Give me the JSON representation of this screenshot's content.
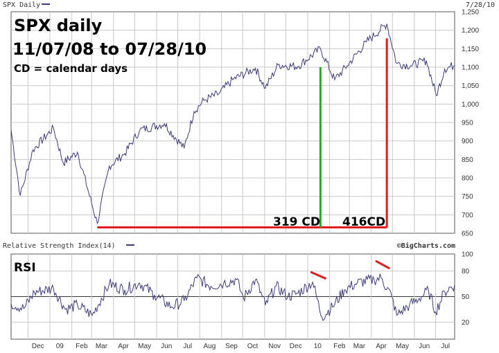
{
  "header": {
    "title": "SPX Daily",
    "date": "7/28/10",
    "rsi_label": "Relative Strength Index(14)",
    "brand": "©BigCharts.com"
  },
  "annotations": {
    "line1": "SPX daily",
    "line2": "11/07/08 to 07/28/10",
    "line3": "CD = calendar days",
    "cd319": "319 CD",
    "cd416": "416CD",
    "rsi": "RSI"
  },
  "colors": {
    "series": "#3a3a7a",
    "grid": "#c8c8c8",
    "green": "#22aa22",
    "red": "#e01b1b"
  },
  "chart_data": [
    {
      "type": "line",
      "name": "SPX daily",
      "x_ticks": [
        "Dec",
        "09",
        "Feb",
        "Mar",
        "Apr",
        "May",
        "Jun",
        "Jul",
        "Aug",
        "Sep",
        "Oct",
        "Nov",
        "Dec",
        "10",
        "Feb",
        "Mar",
        "Apr",
        "May",
        "Jun",
        "Jul"
      ],
      "ylim": [
        650,
        1250
      ],
      "y_ticks": [
        650,
        700,
        750,
        800,
        850,
        900,
        950,
        "1,000",
        "1,050",
        "1,100",
        "1,150",
        "1,200",
        "1,250"
      ],
      "x": [
        "2008-11-07",
        "2008-11-20",
        "2008-12-08",
        "2009-01-06",
        "2009-01-20",
        "2009-02-09",
        "2009-03-09",
        "2009-03-26",
        "2009-04-17",
        "2009-05-08",
        "2009-06-12",
        "2009-07-10",
        "2009-07-24",
        "2009-08-07",
        "2009-08-28",
        "2009-09-18",
        "2009-10-19",
        "2009-11-02",
        "2009-11-20",
        "2009-12-18",
        "2010-01-19",
        "2010-02-08",
        "2010-02-26",
        "2010-03-25",
        "2010-04-23",
        "2010-05-07",
        "2010-05-27",
        "2010-06-18",
        "2010-07-02",
        "2010-07-14",
        "2010-07-28"
      ],
      "y": [
        930,
        752,
        876,
        935,
        840,
        870,
        677,
        832,
        866,
        929,
        947,
        880,
        980,
        1010,
        1028,
        1068,
        1097,
        1043,
        1106,
        1102,
        1150,
        1066,
        1104,
        1168,
        1217,
        1110,
        1104,
        1118,
        1023,
        1095,
        1106
      ],
      "annotations": [
        {
          "type": "span",
          "from": "2009-03-09",
          "to": "2010-04-23",
          "y": 666,
          "color": "red"
        },
        {
          "type": "vline",
          "x": "2010-01-19",
          "y_top": 1100,
          "label": "319 CD",
          "color": "green"
        },
        {
          "type": "vline",
          "x": "2010-04-23",
          "y_top": 1178,
          "label": "416CD",
          "color": "red"
        }
      ]
    },
    {
      "type": "line",
      "name": "RSI",
      "ylim": [
        0,
        100
      ],
      "y_ticks": [
        20,
        50,
        80,
        100
      ],
      "x": [
        "2008-11-07",
        "2008-11-25",
        "2008-12-10",
        "2009-01-06",
        "2009-01-23",
        "2009-02-09",
        "2009-03-02",
        "2009-03-26",
        "2009-04-17",
        "2009-05-08",
        "2009-05-29",
        "2009-06-22",
        "2009-07-10",
        "2009-07-28",
        "2009-08-17",
        "2009-09-04",
        "2009-09-22",
        "2009-10-02",
        "2009-10-19",
        "2009-11-02",
        "2009-11-17",
        "2009-12-04",
        "2009-12-18",
        "2010-01-08",
        "2010-01-21",
        "2010-02-05",
        "2010-02-22",
        "2010-03-12",
        "2010-04-05",
        "2010-04-15",
        "2010-04-30",
        "2010-05-07",
        "2010-05-25",
        "2010-06-08",
        "2010-06-21",
        "2010-07-01",
        "2010-07-14",
        "2010-07-28"
      ],
      "y": [
        42,
        36,
        55,
        60,
        35,
        40,
        28,
        65,
        58,
        66,
        52,
        38,
        45,
        72,
        62,
        66,
        70,
        48,
        70,
        40,
        62,
        50,
        54,
        67,
        26,
        38,
        58,
        66,
        70,
        72,
        50,
        28,
        40,
        48,
        57,
        32,
        56,
        64
      ],
      "annotations": [
        {
          "type": "segment",
          "from": [
            "2010-01-05",
            79
          ],
          "to": [
            "2010-01-27",
            71
          ],
          "color": "red"
        },
        {
          "type": "segment",
          "from": [
            "2010-04-07",
            92
          ],
          "to": [
            "2010-04-27",
            83
          ],
          "color": "red"
        }
      ]
    }
  ]
}
